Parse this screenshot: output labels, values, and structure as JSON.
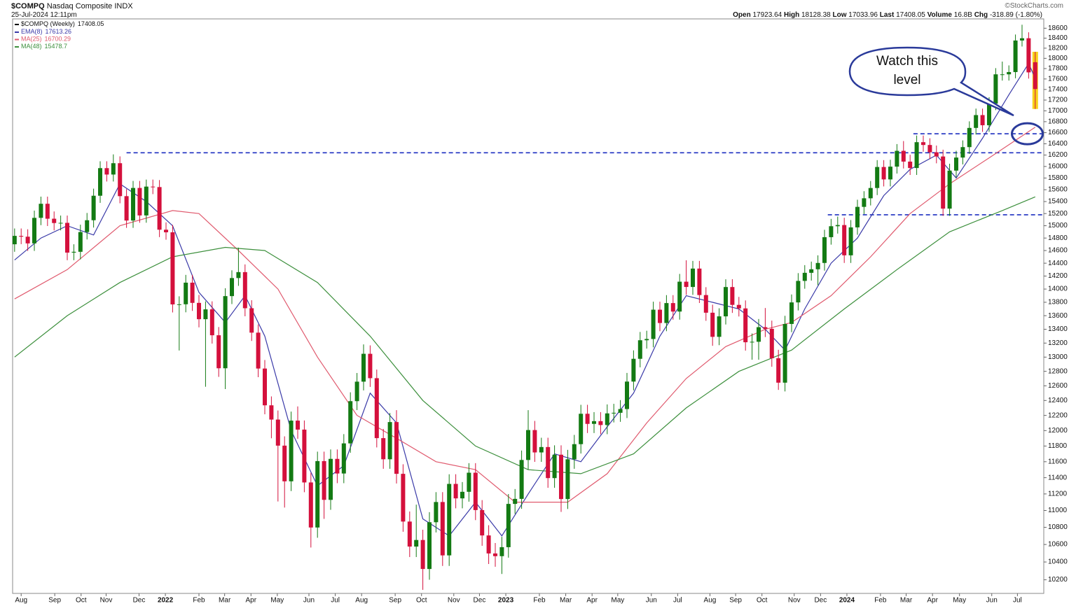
{
  "chart_data": {
    "type": "candlestick",
    "title": "$COMPQ",
    "subtitle": "Nasdaq Composite INDX",
    "date": "25-Jul-2024 12:11pm",
    "credit": "©StockCharts.com",
    "quote": {
      "labels": [
        "Open",
        "High",
        "Low",
        "Last",
        "Volume",
        "Chg"
      ],
      "volume": "16.8B",
      "change": -318.89,
      "change_pct": "(-1.80%)"
    },
    "name": "$COMPQ (Weekly)",
    "up_color": "#137a13",
    "down_color": "#d4103c",
    "highlight_color": "#f7d21a",
    "log": true,
    "grid": false,
    "xlim": [
      -0.3,
      156.3
    ],
    "ylim": [
      10050,
      18790
    ],
    "yticks": [
      10200,
      10400,
      10600,
      10800,
      11000,
      11200,
      11400,
      11600,
      11800,
      12000,
      12200,
      12400,
      12600,
      12800,
      13000,
      13200,
      13400,
      13600,
      13800,
      14000,
      14200,
      14400,
      14600,
      14800,
      15000,
      15200,
      15400,
      15600,
      15800,
      16000,
      16200,
      16400,
      16600,
      16800,
      17000,
      17200,
      17400,
      17600,
      17800,
      18000,
      18200,
      18400,
      18600
    ],
    "xticks": [
      {
        "value": 1.0,
        "label": "Aug"
      },
      {
        "value": 6.1,
        "label": "Sep"
      },
      {
        "value": 10.1,
        "label": "Oct"
      },
      {
        "value": 13.9,
        "label": "Nov"
      },
      {
        "value": 18.9,
        "label": "Dec"
      },
      {
        "value": 22.9,
        "label": "2022"
      },
      {
        "value": 28.0,
        "label": "Feb"
      },
      {
        "value": 31.9,
        "label": "Mar"
      },
      {
        "value": 35.9,
        "label": "Apr"
      },
      {
        "value": 39.9,
        "label": "May"
      },
      {
        "value": 44.7,
        "label": "Jun"
      },
      {
        "value": 48.7,
        "label": "Jul"
      },
      {
        "value": 52.7,
        "label": "Aug"
      },
      {
        "value": 57.8,
        "label": "Sep"
      },
      {
        "value": 61.8,
        "label": "Oct"
      },
      {
        "value": 66.7,
        "label": "Nov"
      },
      {
        "value": 70.6,
        "label": "Dec"
      },
      {
        "value": 74.6,
        "label": "2023"
      },
      {
        "value": 79.7,
        "label": "Feb"
      },
      {
        "value": 83.7,
        "label": "Mar"
      },
      {
        "value": 87.7,
        "label": "Apr"
      },
      {
        "value": 91.6,
        "label": "May"
      },
      {
        "value": 96.7,
        "label": "Jun"
      },
      {
        "value": 100.7,
        "label": "Jul"
      },
      {
        "value": 105.6,
        "label": "Aug"
      },
      {
        "value": 109.5,
        "label": "Sep"
      },
      {
        "value": 113.5,
        "label": "Oct"
      },
      {
        "value": 118.4,
        "label": "Nov"
      },
      {
        "value": 122.4,
        "label": "Dec"
      },
      {
        "value": 126.4,
        "label": "2024"
      },
      {
        "value": 131.5,
        "label": "Feb"
      },
      {
        "value": 135.4,
        "label": "Mar"
      },
      {
        "value": 139.4,
        "label": "Apr"
      },
      {
        "value": 143.5,
        "label": "May"
      },
      {
        "value": 148.4,
        "label": "Jun"
      },
      {
        "value": 152.3,
        "label": "Jul"
      }
    ],
    "ohlc": [
      [
        14700,
        14955,
        14580,
        14835
      ],
      [
        14835,
        14955,
        14702,
        14822
      ],
      [
        14822,
        14942,
        14594,
        14714
      ],
      [
        14714,
        15249,
        14594,
        15129
      ],
      [
        15129,
        15483,
        15009,
        15363
      ],
      [
        15363,
        15483,
        14995,
        15115
      ],
      [
        15115,
        15235,
        14924,
        15044
      ],
      [
        15044,
        15167,
        14924,
        15047
      ],
      [
        15047,
        15167,
        14447,
        14567
      ],
      [
        14567,
        14700,
        14447,
        14580
      ],
      [
        14580,
        15017,
        14460,
        14897
      ],
      [
        14897,
        15210,
        14777,
        15090
      ],
      [
        15090,
        15618,
        14970,
        15498
      ],
      [
        15498,
        16091,
        15378,
        15971
      ],
      [
        15971,
        16091,
        15740,
        15860
      ],
      [
        15860,
        16212,
        15740,
        16057
      ],
      [
        16057,
        16177,
        15371,
        15491
      ],
      [
        15491,
        15611,
        14965,
        15085
      ],
      [
        15085,
        15750,
        14965,
        15630
      ],
      [
        15630,
        15750,
        15049,
        15169
      ],
      [
        15169,
        15773,
        15049,
        15653
      ],
      [
        15653,
        15773,
        15525,
        15645
      ],
      [
        15645,
        15765,
        14815,
        14935
      ],
      [
        14935,
        15055,
        14773,
        14893
      ],
      [
        14893,
        15013,
        13648,
        13768
      ],
      [
        13768,
        13890,
        13094,
        13770
      ],
      [
        13770,
        14218,
        13650,
        14098
      ],
      [
        14098,
        14218,
        13671,
        13791
      ],
      [
        13791,
        13911,
        13428,
        13548
      ],
      [
        13548,
        13814,
        12587,
        13694
      ],
      [
        13694,
        13814,
        13193,
        13313
      ],
      [
        13313,
        13433,
        12723,
        12843
      ],
      [
        12843,
        14013,
        12555,
        13893
      ],
      [
        13893,
        14289,
        13773,
        14169
      ],
      [
        14169,
        14646,
        14049,
        14261
      ],
      [
        14261,
        14381,
        13591,
        13711
      ],
      [
        13711,
        13831,
        13231,
        13351
      ],
      [
        13351,
        13471,
        12719,
        12839
      ],
      [
        12839,
        12959,
        12215,
        12335
      ],
      [
        12335,
        12455,
        11900,
        12145
      ],
      [
        12145,
        12265,
        11108,
        11805
      ],
      [
        11805,
        11925,
        11035,
        11355
      ],
      [
        11355,
        12251,
        11235,
        12131
      ],
      [
        12131,
        12320,
        11893,
        12013
      ],
      [
        12013,
        12133,
        11221,
        11341
      ],
      [
        11341,
        11461,
        10565,
        10798
      ],
      [
        10798,
        11728,
        10678,
        11608
      ],
      [
        11608,
        11728,
        10900,
        11128
      ],
      [
        11128,
        11756,
        11008,
        11636
      ],
      [
        11636,
        11756,
        11332,
        11452
      ],
      [
        11452,
        11954,
        11332,
        11834
      ],
      [
        11834,
        12511,
        11714,
        12391
      ],
      [
        12391,
        12777,
        12271,
        12657
      ],
      [
        12657,
        13181,
        12537,
        13047
      ],
      [
        13047,
        13167,
        12585,
        12705
      ],
      [
        12705,
        12825,
        11782,
        11902
      ],
      [
        11902,
        12022,
        11511,
        11631
      ],
      [
        11631,
        12232,
        11511,
        12112
      ],
      [
        12112,
        12270,
        11328,
        11448
      ],
      [
        11448,
        11568,
        10748,
        10868
      ],
      [
        10868,
        10988,
        10456,
        10576
      ],
      [
        10576,
        11070,
        10456,
        10652
      ],
      [
        10652,
        10772,
        10089,
        10321
      ],
      [
        10321,
        10980,
        10201,
        10860
      ],
      [
        10860,
        11222,
        10740,
        11102
      ],
      [
        11102,
        11222,
        10355,
        10475
      ],
      [
        10475,
        11443,
        10355,
        11323
      ],
      [
        11323,
        11443,
        11026,
        11146
      ],
      [
        11146,
        11346,
        11026,
        11226
      ],
      [
        11226,
        11582,
        11106,
        11462
      ],
      [
        11462,
        11582,
        10885,
        11005
      ],
      [
        11005,
        11125,
        10585,
        10705
      ],
      [
        10705,
        10825,
        10377,
        10497
      ],
      [
        10497,
        10617,
        10346,
        10466
      ],
      [
        10466,
        10689,
        10265,
        10569
      ],
      [
        10569,
        11199,
        10449,
        11079
      ],
      [
        11079,
        11260,
        10959,
        11140
      ],
      [
        11140,
        11742,
        11020,
        11622
      ],
      [
        11622,
        12270,
        11502,
        12007
      ],
      [
        12007,
        12127,
        11598,
        11718
      ],
      [
        11718,
        11907,
        11598,
        11787
      ],
      [
        11787,
        11907,
        11275,
        11395
      ],
      [
        11395,
        11809,
        11275,
        11689
      ],
      [
        11689,
        11809,
        10983,
        11138
      ],
      [
        11138,
        11751,
        11018,
        11631
      ],
      [
        11631,
        11944,
        11511,
        11824
      ],
      [
        11824,
        12342,
        11704,
        12222
      ],
      [
        12222,
        12342,
        11968,
        12088
      ],
      [
        12088,
        12244,
        11968,
        12124
      ],
      [
        12124,
        12244,
        11953,
        12073
      ],
      [
        12073,
        12347,
        11953,
        12227
      ],
      [
        12227,
        12355,
        12107,
        12235
      ],
      [
        12235,
        12405,
        12115,
        12285
      ],
      [
        12285,
        12778,
        12165,
        12658
      ],
      [
        12658,
        13096,
        12538,
        12976
      ],
      [
        12976,
        13361,
        12856,
        13241
      ],
      [
        13241,
        13379,
        13121,
        13259
      ],
      [
        13259,
        13809,
        13139,
        13689
      ],
      [
        13689,
        13809,
        13372,
        13492
      ],
      [
        13492,
        13908,
        13372,
        13788
      ],
      [
        13788,
        13908,
        13541,
        13661
      ],
      [
        13661,
        14233,
        13541,
        14113
      ],
      [
        14113,
        14446,
        13912,
        14032
      ],
      [
        14032,
        14436,
        13912,
        14316
      ],
      [
        14316,
        14436,
        13789,
        13909
      ],
      [
        13909,
        14029,
        13524,
        13644
      ],
      [
        13644,
        13764,
        13161,
        13290
      ],
      [
        13290,
        13710,
        13170,
        13590
      ],
      [
        13590,
        14150,
        13470,
        14031
      ],
      [
        14031,
        14151,
        13641,
        13761
      ],
      [
        13761,
        13881,
        13588,
        13708
      ],
      [
        13708,
        13828,
        13092,
        13212
      ],
      [
        13212,
        13339,
        12963,
        13219
      ],
      [
        13219,
        13551,
        12963,
        13431
      ],
      [
        13431,
        13714,
        13287,
        13407
      ],
      [
        13407,
        13527,
        12864,
        12984
      ],
      [
        12984,
        13104,
        12544,
        12643
      ],
      [
        12643,
        13598,
        12523,
        13478
      ],
      [
        13478,
        13918,
        13358,
        13798
      ],
      [
        13798,
        14245,
        13678,
        14125
      ],
      [
        14125,
        14370,
        14005,
        14250
      ],
      [
        14250,
        14425,
        14130,
        14305
      ],
      [
        14305,
        14524,
        14058,
        14404
      ],
      [
        14404,
        14934,
        14284,
        14814
      ],
      [
        14814,
        15112,
        14694,
        14992
      ],
      [
        14992,
        15150,
        14872,
        15011
      ],
      [
        15011,
        15131,
        14404,
        14524
      ],
      [
        14524,
        15093,
        14404,
        14973
      ],
      [
        14973,
        15431,
        14853,
        15311
      ],
      [
        15311,
        15575,
        15191,
        15455
      ],
      [
        15455,
        15749,
        15335,
        15629
      ],
      [
        15629,
        16111,
        15509,
        15991
      ],
      [
        15991,
        16111,
        15656,
        15776
      ],
      [
        15776,
        16117,
        15656,
        15997
      ],
      [
        15997,
        16395,
        15877,
        16275
      ],
      [
        16275,
        16449,
        15965,
        16085
      ],
      [
        16085,
        16205,
        15853,
        15973
      ],
      [
        15973,
        16549,
        15853,
        16429
      ],
      [
        16429,
        16549,
        16259,
        16379
      ],
      [
        16379,
        16499,
        16129,
        16249
      ],
      [
        16249,
        16369,
        16055,
        16175
      ],
      [
        16175,
        16295,
        15162,
        15282
      ],
      [
        15282,
        16048,
        15162,
        15928
      ],
      [
        15928,
        16276,
        15808,
        16156
      ],
      [
        16156,
        16461,
        16036,
        16341
      ],
      [
        16341,
        16806,
        16221,
        16686
      ],
      [
        16686,
        17041,
        16566,
        16921
      ],
      [
        16921,
        17041,
        16615,
        16735
      ],
      [
        16735,
        17253,
        16615,
        17133
      ],
      [
        17133,
        17809,
        17013,
        17689
      ],
      [
        17689,
        17936,
        17569,
        17689
      ],
      [
        17689,
        17862,
        17569,
        17733
      ],
      [
        17733,
        18473,
        17613,
        18353
      ],
      [
        18353,
        18671,
        18233,
        18398
      ],
      [
        18398,
        18518,
        17607,
        17727
      ],
      [
        17923.64,
        18128.38,
        17033.96,
        17408.05
      ]
    ],
    "series": [
      {
        "name": "EMA(8)",
        "color": "#3a3aa8",
        "x": [
          0,
          4,
          8,
          12,
          16,
          20,
          24,
          28,
          32,
          35,
          38,
          42,
          46,
          50,
          54,
          58,
          62,
          66,
          70,
          74,
          78,
          82,
          86,
          90,
          94,
          98,
          102,
          106,
          110,
          114,
          117,
          120,
          124,
          128,
          132,
          136,
          140,
          143,
          147,
          151,
          154,
          155
        ],
        "values": [
          14450,
          14800,
          15000,
          14850,
          15700,
          15400,
          15000,
          13950,
          13500,
          13900,
          13300,
          12000,
          11300,
          11550,
          12500,
          12100,
          10900,
          10700,
          11100,
          10700,
          11200,
          11700,
          11600,
          12050,
          12500,
          13300,
          13900,
          13800,
          13700,
          13400,
          13100,
          13700,
          14400,
          14800,
          15500,
          15950,
          16200,
          15800,
          16500,
          17300,
          17900,
          17613.26
        ]
      },
      {
        "name": "MA(25)",
        "color": "#e05a6e",
        "x": [
          0,
          8,
          16,
          24,
          28,
          34,
          40,
          46,
          52,
          58,
          64,
          70,
          76,
          84,
          90,
          96,
          102,
          108,
          114,
          118,
          124,
          130,
          136,
          142,
          148,
          155
        ],
        "values": [
          13850,
          14300,
          15000,
          15250,
          15200,
          14600,
          14000,
          13000,
          12200,
          11900,
          11600,
          11500,
          11100,
          11100,
          11450,
          12100,
          12700,
          13150,
          13400,
          13500,
          13900,
          14500,
          15200,
          15700,
          16150,
          16700.29
        ]
      },
      {
        "name": "MA(48)",
        "color": "#3c8f3c",
        "x": [
          0,
          8,
          16,
          24,
          32,
          38,
          46,
          54,
          62,
          70,
          78,
          86,
          94,
          102,
          110,
          118,
          126,
          134,
          142,
          150,
          155
        ],
        "values": [
          13000,
          13600,
          14100,
          14500,
          14650,
          14600,
          14100,
          13300,
          12400,
          11800,
          11500,
          11450,
          11700,
          12300,
          12800,
          13100,
          13700,
          14300,
          14900,
          15250,
          15478.7
        ]
      }
    ],
    "hlines": [
      {
        "value": 16240,
        "from": 17,
        "color": "#1c2fc0"
      },
      {
        "value": 16580,
        "from": 136.5,
        "color": "#1c2fc0"
      },
      {
        "value": 15180,
        "from": 123.5,
        "color": "#1c2fc0"
      }
    ],
    "annotation": {
      "lines": [
        "Watch this",
        "level"
      ],
      "circle_x": 153.8,
      "circle_value": 16580,
      "color": "#2a3a9a"
    }
  }
}
